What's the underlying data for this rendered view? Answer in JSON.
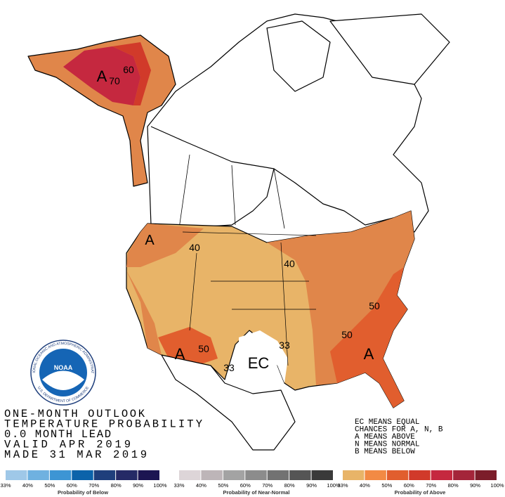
{
  "outlook": {
    "lines": [
      "ONE-MONTH OUTLOOK",
      "TEMPERATURE PROBABILITY",
      "0.0 MONTH LEAD",
      "VALID APR 2019",
      "MADE 31 MAR 2019"
    ]
  },
  "key": [
    "EC MEANS EQUAL",
    "CHANCES FOR A, N, B",
    "A MEANS ABOVE",
    "N MEANS NORMAL",
    "B MEANS BELOW"
  ],
  "map_labels": [
    "A",
    "70",
    "60",
    "A",
    "40",
    "40",
    "A",
    "50",
    "33",
    "33",
    "EC",
    "50",
    "50",
    "A"
  ],
  "logo": {
    "name": "NOAA",
    "ring_top": "NATIONAL OCEANIC AND ATMOSPHERIC ADMINISTRATION",
    "ring_bottom": "U.S. DEPARTMENT OF COMMERCE"
  },
  "legends": [
    {
      "caption": "Probability of Below",
      "colors": [
        "#9fc8e8",
        "#6fb1e0",
        "#3d95d4",
        "#0c63aa",
        "#1f3f7c",
        "#252a66",
        "#1c1552"
      ],
      "ticks": [
        "33%",
        "40%",
        "50%",
        "60%",
        "70%",
        "80%",
        "90%",
        "100%"
      ]
    },
    {
      "caption": "Probability of Near-Normal",
      "colors": [
        "#ddd5d8",
        "#bdb5b8",
        "#a3a3a3",
        "#8c8c8c",
        "#727272",
        "#555555",
        "#3a3a3a"
      ],
      "ticks": [
        "33%",
        "40%",
        "50%",
        "60%",
        "70%",
        "80%",
        "90%",
        "100%"
      ]
    },
    {
      "caption": "Probability of Above",
      "colors": [
        "#e8b468",
        "#f28a44",
        "#e15e2e",
        "#d13a2a",
        "#c5283f",
        "#a4253a",
        "#7c1d2a"
      ],
      "ticks": [
        "33%",
        "40%",
        "50%",
        "60%",
        "70%",
        "80%",
        "90%",
        "100%"
      ]
    }
  ]
}
